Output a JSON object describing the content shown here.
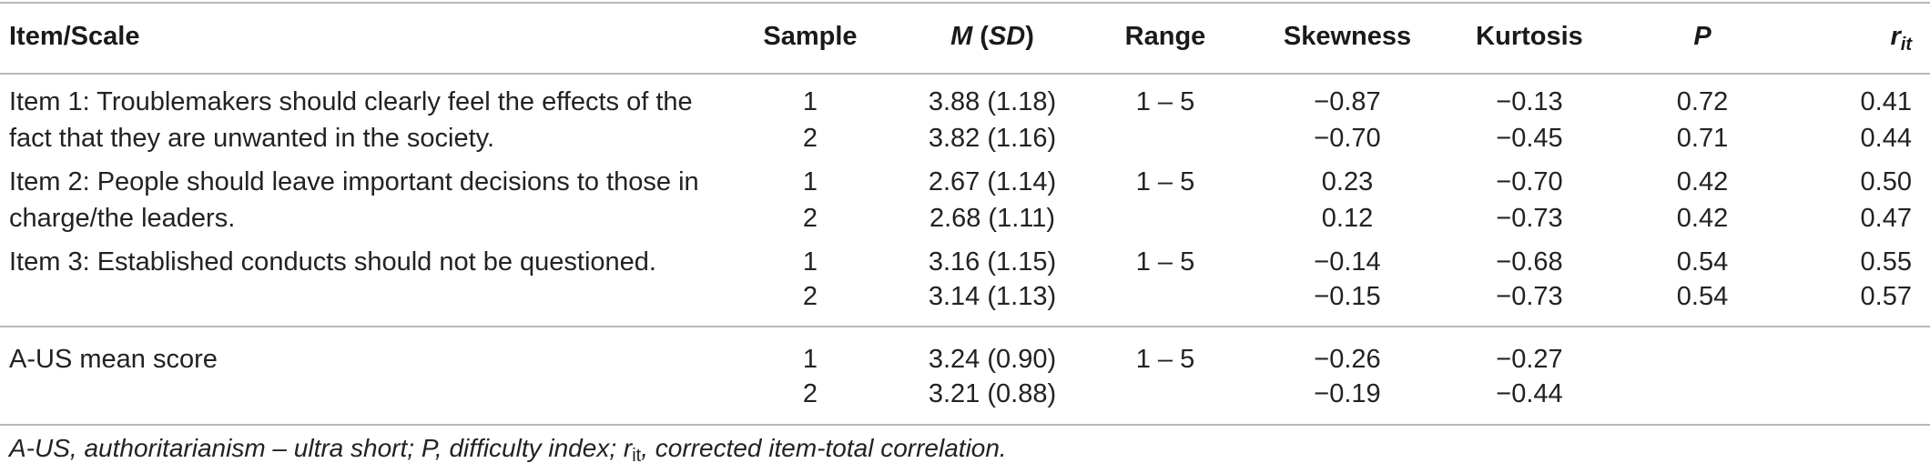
{
  "table": {
    "headers": {
      "item": "Item/Scale",
      "sample": "Sample",
      "m": "M",
      "sd": "SD",
      "range": "Range",
      "skew": "Skewness",
      "kurt": "Kurtosis",
      "p": "P",
      "rit_base": "r",
      "rit_sub": "it"
    },
    "items": [
      {
        "label_line1": "Item 1: Troublemakers should clearly feel the effects of the",
        "label_line2": "fact that they are unwanted in the society.",
        "range": "1 – 5",
        "rows": [
          {
            "sample": "1",
            "msd": "3.88 (1.18)",
            "skew": "−0.87",
            "kurt": "−0.13",
            "p": "0.72",
            "rit": "0.41"
          },
          {
            "sample": "2",
            "msd": "3.82 (1.16)",
            "skew": "−0.70",
            "kurt": "−0.45",
            "p": "0.71",
            "rit": "0.44"
          }
        ]
      },
      {
        "label_line1": "Item 2: People should leave important decisions to those in",
        "label_line2": "charge/the leaders.",
        "range": "1 – 5",
        "rows": [
          {
            "sample": "1",
            "msd": "2.67 (1.14)",
            "skew": "0.23",
            "kurt": "−0.70",
            "p": "0.42",
            "rit": "0.50"
          },
          {
            "sample": "2",
            "msd": "2.68 (1.11)",
            "skew": "0.12",
            "kurt": "−0.73",
            "p": "0.42",
            "rit": "0.47"
          }
        ]
      },
      {
        "label_line1": "Item 3: Established conducts should not be questioned.",
        "label_line2": "",
        "range": "1 – 5",
        "rows": [
          {
            "sample": "1",
            "msd": "3.16 (1.15)",
            "skew": "−0.14",
            "kurt": "−0.68",
            "p": "0.54",
            "rit": "0.55"
          },
          {
            "sample": "2",
            "msd": "3.14 (1.13)",
            "skew": "−0.15",
            "kurt": "−0.73",
            "p": "0.54",
            "rit": "0.57"
          }
        ]
      }
    ],
    "scale": {
      "label": "A-US mean score",
      "range": "1 – 5",
      "rows": [
        {
          "sample": "1",
          "msd": "3.24 (0.90)",
          "skew": "−0.26",
          "kurt": "−0.27"
        },
        {
          "sample": "2",
          "msd": "3.21 (0.88)",
          "skew": "−0.19",
          "kurt": "−0.44"
        }
      ]
    },
    "footnote": {
      "part1": "A-US, authoritarianism – ultra short; P, difficulty index; r",
      "sub": "it",
      "part2": ", corrected item-total correlation."
    }
  }
}
